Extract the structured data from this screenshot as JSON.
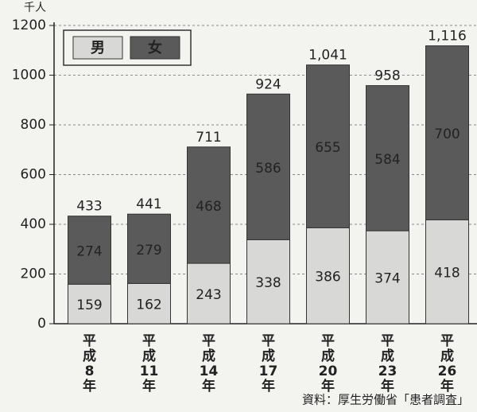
{
  "chart_data": {
    "type": "stacked_bar",
    "unit_label": "千人",
    "source": "資料：厚生労働省「患者調査」",
    "categories": [
      "平成8年",
      "平成11年",
      "平成14年",
      "平成17年",
      "平成20年",
      "平成23年",
      "平成26年"
    ],
    "series": [
      {
        "name": "男",
        "color": "#d8d8d6",
        "values": [
          159,
          162,
          243,
          338,
          386,
          374,
          418
        ]
      },
      {
        "name": "女",
        "color": "#5a5a5a",
        "values": [
          274,
          279,
          468,
          586,
          655,
          584,
          700
        ]
      }
    ],
    "totals": [
      433,
      441,
      711,
      924,
      {
        "value": 1041,
        "label": "1,041"
      },
      958,
      {
        "value": 1116,
        "label": "1,116"
      }
    ],
    "ylim": [
      0,
      1200
    ],
    "yticks": [
      0,
      200,
      400,
      600,
      800,
      1000,
      1200
    ],
    "grid": true
  }
}
